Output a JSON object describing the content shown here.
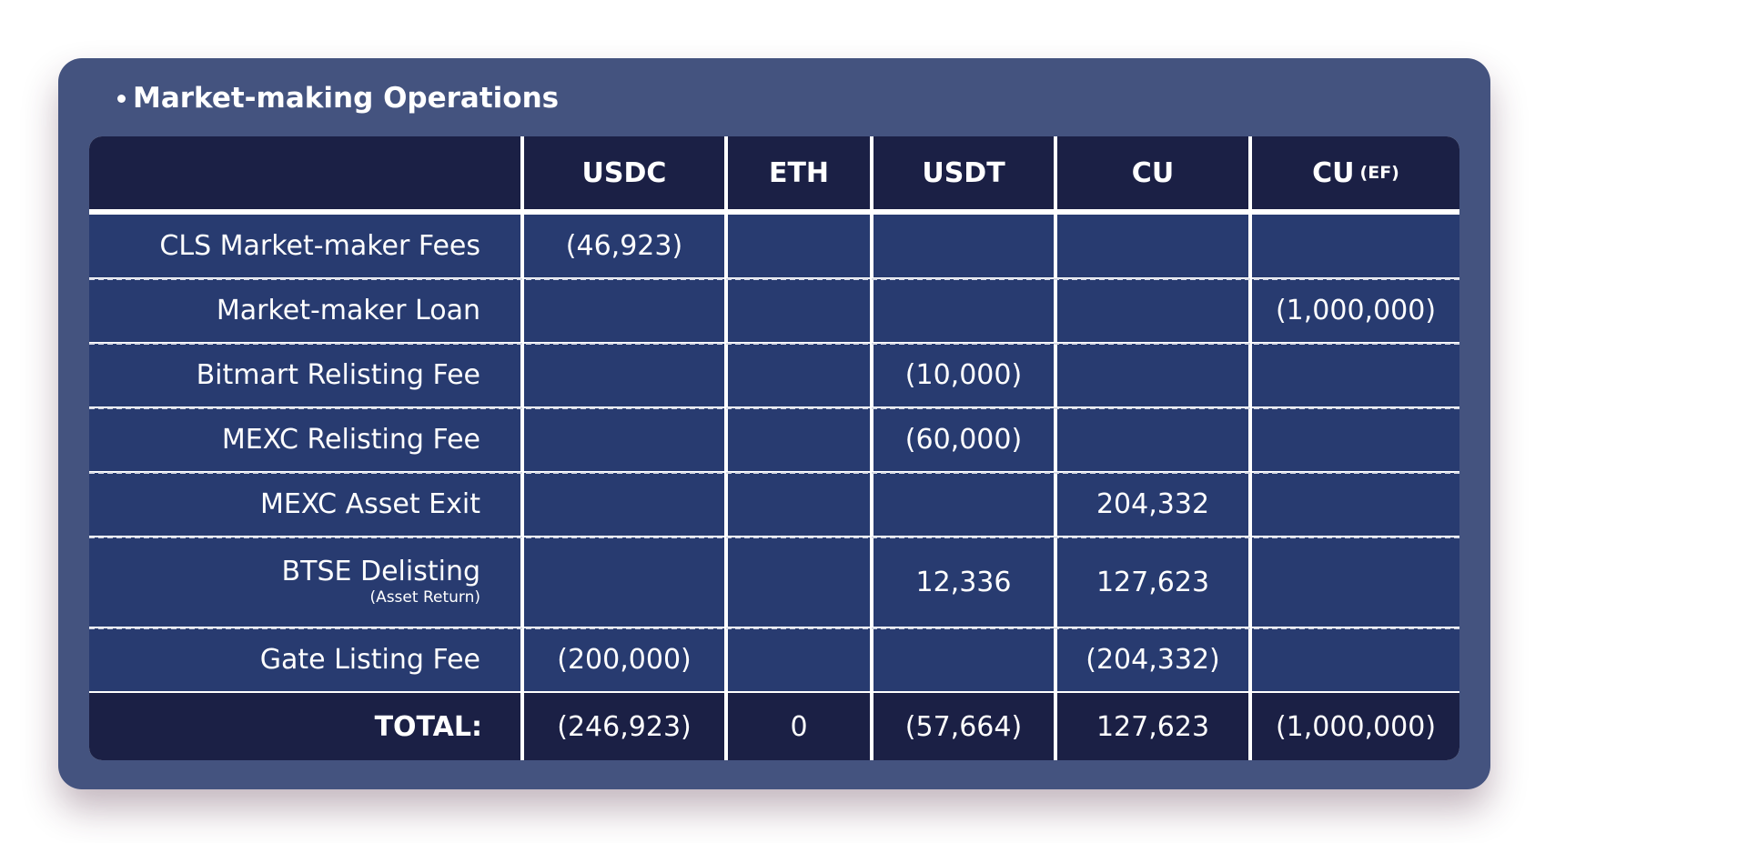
{
  "title": "Market-making Operations",
  "columns": [
    {
      "label": "USDC",
      "sub": ""
    },
    {
      "label": "ETH",
      "sub": ""
    },
    {
      "label": "USDT",
      "sub": ""
    },
    {
      "label": "CU",
      "sub": ""
    },
    {
      "label": "CU",
      "sub": "(EF)"
    }
  ],
  "rows": [
    {
      "label": "CLS Market-maker Fees",
      "sublabel": "",
      "values": [
        "(46,923)",
        "",
        "",
        "",
        ""
      ]
    },
    {
      "label": "Market-maker Loan",
      "sublabel": "",
      "values": [
        "",
        "",
        "",
        "",
        "(1,000,000)"
      ]
    },
    {
      "label": "Bitmart Relisting Fee",
      "sublabel": "",
      "values": [
        "",
        "",
        "(10,000)",
        "",
        ""
      ]
    },
    {
      "label": "MEXC Relisting Fee",
      "sublabel": "",
      "values": [
        "",
        "",
        "(60,000)",
        "",
        ""
      ]
    },
    {
      "label": "MEXC Asset Exit",
      "sublabel": "",
      "values": [
        "",
        "",
        "",
        "204,332",
        ""
      ]
    },
    {
      "label": "BTSE Delisting",
      "sublabel": "(Asset Return)",
      "values": [
        "",
        "",
        "12,336",
        "127,623",
        ""
      ]
    },
    {
      "label": "Gate Listing Fee",
      "sublabel": "",
      "values": [
        "(200,000)",
        "",
        "",
        "(204,332)",
        ""
      ]
    }
  ],
  "total": {
    "label": "TOTAL:",
    "values": [
      "(246,923)",
      "0",
      "(57,664)",
      "127,623",
      "(1,000,000)"
    ]
  },
  "colors": {
    "card_bg": "#44537f",
    "header_bg": "#1b2045",
    "body_bg": "#283b70",
    "text": "#ffffff"
  }
}
